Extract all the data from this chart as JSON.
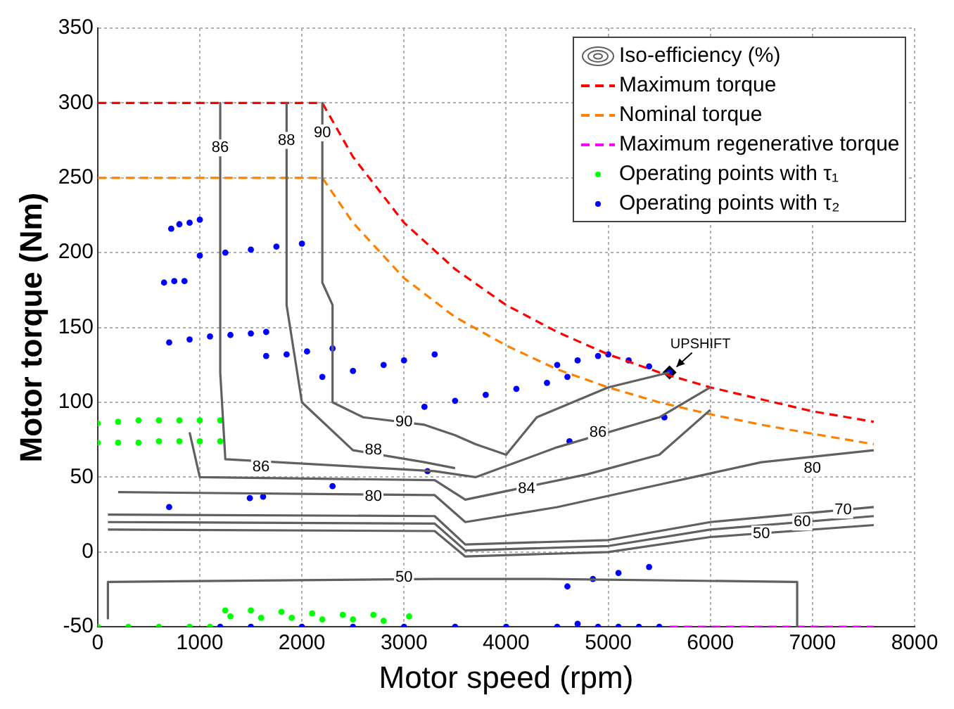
{
  "chart_data": {
    "type": "line",
    "xlabel": "Motor speed (rpm)",
    "ylabel": "Motor torque (Nm)",
    "xlim": [
      0,
      8000
    ],
    "xticks": [
      0,
      1000,
      2000,
      3000,
      4000,
      5000,
      6000,
      7000,
      8000
    ],
    "ylim": [
      -50,
      350
    ],
    "yticks": [
      -50,
      0,
      50,
      100,
      150,
      200,
      250,
      300,
      350
    ],
    "grid": true,
    "legend": "top right",
    "series": [
      {
        "name": "Iso-efficiency (%)",
        "color": "#606060",
        "line_style": "solid",
        "marker": "none",
        "x": [
          2200,
          2200,
          2300,
          2300,
          2600,
          3200,
          3500,
          3700,
          4000,
          4300,
          5000,
          5600
        ],
        "values": [
          300,
          180,
          165,
          100,
          90,
          85,
          78,
          72,
          65,
          90,
          110,
          120
        ]
      },
      {
        "type": "line",
        "color": "#606060",
        "line_style": "solid",
        "marker": "none",
        "x": [
          1850,
          1850,
          2000,
          2500,
          3200,
          3500
        ],
        "values": [
          300,
          165,
          100,
          68,
          60,
          56
        ]
      },
      {
        "type": "line",
        "color": "#606060",
        "line_style": "solid",
        "marker": "none",
        "x": [
          1200,
          1200,
          1250,
          3300,
          3700,
          4500,
          5500,
          6000
        ],
        "values": [
          300,
          120,
          62,
          54,
          50,
          70,
          90,
          110
        ]
      },
      {
        "type": "line",
        "color": "#606060",
        "line_style": "solid",
        "marker": "none",
        "x": [
          900,
          1000,
          3300,
          3600,
          4800,
          5500,
          6000
        ],
        "values": [
          80,
          50,
          48,
          35,
          52,
          65,
          95
        ]
      },
      {
        "type": "line",
        "color": "#606060",
        "line_style": "solid",
        "marker": "none",
        "x": [
          200,
          3300,
          3600,
          4500,
          5500,
          6500,
          7600
        ],
        "values": [
          40,
          38,
          20,
          30,
          45,
          60,
          68
        ]
      },
      {
        "type": "line",
        "color": "#606060",
        "line_style": "solid",
        "marker": "none",
        "x": [
          100,
          3300,
          3600,
          5000,
          6000,
          7600
        ],
        "values": [
          25,
          24,
          5,
          8,
          20,
          30
        ]
      },
      {
        "type": "line",
        "color": "#606060",
        "line_style": "solid",
        "marker": "none",
        "x": [
          100,
          3300,
          3600,
          5000,
          6000,
          7600
        ],
        "values": [
          20,
          19,
          1,
          4,
          15,
          24
        ]
      },
      {
        "type": "line",
        "color": "#606060",
        "line_style": "solid",
        "marker": "none",
        "x": [
          100,
          3300,
          3600,
          5000,
          6000,
          7600
        ],
        "values": [
          15,
          14,
          -3,
          0,
          10,
          18
        ]
      },
      {
        "type": "line",
        "color": "#606060",
        "line_style": "solid",
        "marker": "none",
        "x": [
          100,
          100,
          3300,
          4400,
          6850,
          6850
        ],
        "values": [
          -45,
          -20,
          -18,
          -18,
          -20,
          -50
        ]
      },
      {
        "name": "Maximum torque",
        "color": "#ff0000",
        "line_style": "dashed",
        "marker": "none",
        "x": [
          0,
          2200,
          2500,
          3000,
          3500,
          4000,
          4500,
          5000,
          5500,
          6000,
          6500,
          7000,
          7600
        ],
        "values": [
          300,
          300,
          264,
          220,
          189,
          165,
          147,
          132,
          120,
          110,
          102,
          94,
          87
        ]
      },
      {
        "name": "Nominal torque",
        "type": "line",
        "color": "#ff8000",
        "line_style": "dashed",
        "marker": "none",
        "x": [
          0,
          2200,
          2500,
          3000,
          3500,
          4000,
          4500,
          5000,
          5500,
          6000,
          6500,
          7000,
          7600
        ],
        "values": [
          250,
          250,
          220,
          183,
          157,
          138,
          122,
          110,
          100,
          92,
          85,
          79,
          72
        ]
      },
      {
        "name": "Maximum regenerative torque",
        "type": "line",
        "color": "#ff00ff",
        "line_style": "dashed",
        "marker": "none",
        "x": [
          5600,
          7600
        ],
        "values": [
          -50,
          -50
        ]
      },
      {
        "name": "Operating points with τ₁",
        "type": "scatter",
        "color": "#00ff00",
        "marker": "circle",
        "x": [
          0,
          200,
          400,
          600,
          800,
          1000,
          1200,
          0,
          200,
          400,
          600,
          800,
          1000,
          1200,
          0,
          300,
          600,
          900,
          1100,
          1250,
          1500,
          1800,
          2100,
          2400,
          2700,
          3050,
          1300,
          1600,
          1900,
          2200,
          2500,
          2800
        ],
        "values": [
          86,
          87,
          88,
          88,
          88,
          88,
          88,
          73,
          73,
          73,
          74,
          74,
          74,
          74,
          -50,
          -50,
          -50,
          -50,
          -50,
          -39,
          -39,
          -40,
          -41,
          -42,
          -42,
          -43,
          -43,
          -44,
          -44,
          -45,
          -45,
          -46
        ]
      },
      {
        "name": "Operating points with τ₂",
        "type": "scatter",
        "color": "#0000ff",
        "marker": "circle",
        "x": [
          720,
          800,
          900,
          1000,
          650,
          750,
          850,
          1000,
          1250,
          1500,
          1750,
          2000,
          700,
          900,
          1100,
          1300,
          1500,
          1650,
          1650,
          1850,
          2050,
          2300,
          2200,
          2500,
          2800,
          3000,
          3300,
          3200,
          3500,
          3800,
          4100,
          4400,
          4600,
          4500,
          4700,
          4900,
          5000,
          5200,
          5400,
          5600,
          700,
          1490,
          1620,
          2300,
          3230,
          4620,
          5550,
          1200,
          1500,
          2000,
          2500,
          3000,
          3500,
          4000,
          4500,
          4700,
          4900,
          5100,
          5300,
          5500,
          4600,
          4850,
          5100,
          5400
        ],
        "values": [
          216,
          219,
          220,
          222,
          180,
          181,
          181,
          198,
          200,
          202,
          204,
          206,
          140,
          142,
          144,
          145,
          146,
          147,
          131,
          132,
          134,
          136,
          117,
          121,
          125,
          128,
          132,
          97,
          101,
          105,
          109,
          113,
          117,
          125,
          128,
          131,
          132,
          128,
          124,
          120,
          30,
          36,
          37,
          44,
          54,
          74,
          90,
          -50,
          -50,
          -50,
          -50,
          -50,
          -50,
          -50,
          -50,
          -48,
          -50,
          -50,
          -50,
          -50,
          -23,
          -18,
          -14,
          -10
        ]
      },
      {
        "type": "scatter",
        "color": "#000000",
        "marker": "diamond",
        "x": [
          5600
        ],
        "values": [
          120
        ]
      }
    ],
    "annotations": [
      {
        "text": "UPSHIFT",
        "x": 5600,
        "y": 120
      },
      {
        "text": "90",
        "x": 2200,
        "y": 280
      },
      {
        "text": "88",
        "x": 1850,
        "y": 275
      },
      {
        "text": "86",
        "x": 1200,
        "y": 270
      },
      {
        "text": "90",
        "x": 3000,
        "y": 87
      },
      {
        "text": "88",
        "x": 2700,
        "y": 68
      },
      {
        "text": "86",
        "x": 1600,
        "y": 57
      },
      {
        "text": "86",
        "x": 4900,
        "y": 80
      },
      {
        "text": "84",
        "x": 4200,
        "y": 42
      },
      {
        "text": "80",
        "x": 2700,
        "y": 37
      },
      {
        "text": "80",
        "x": 7000,
        "y": 56
      },
      {
        "text": "70",
        "x": 7300,
        "y": 28
      },
      {
        "text": "60",
        "x": 6900,
        "y": 20
      },
      {
        "text": "50",
        "x": 6500,
        "y": 12
      },
      {
        "text": "50",
        "x": 3000,
        "y": -17
      }
    ]
  }
}
